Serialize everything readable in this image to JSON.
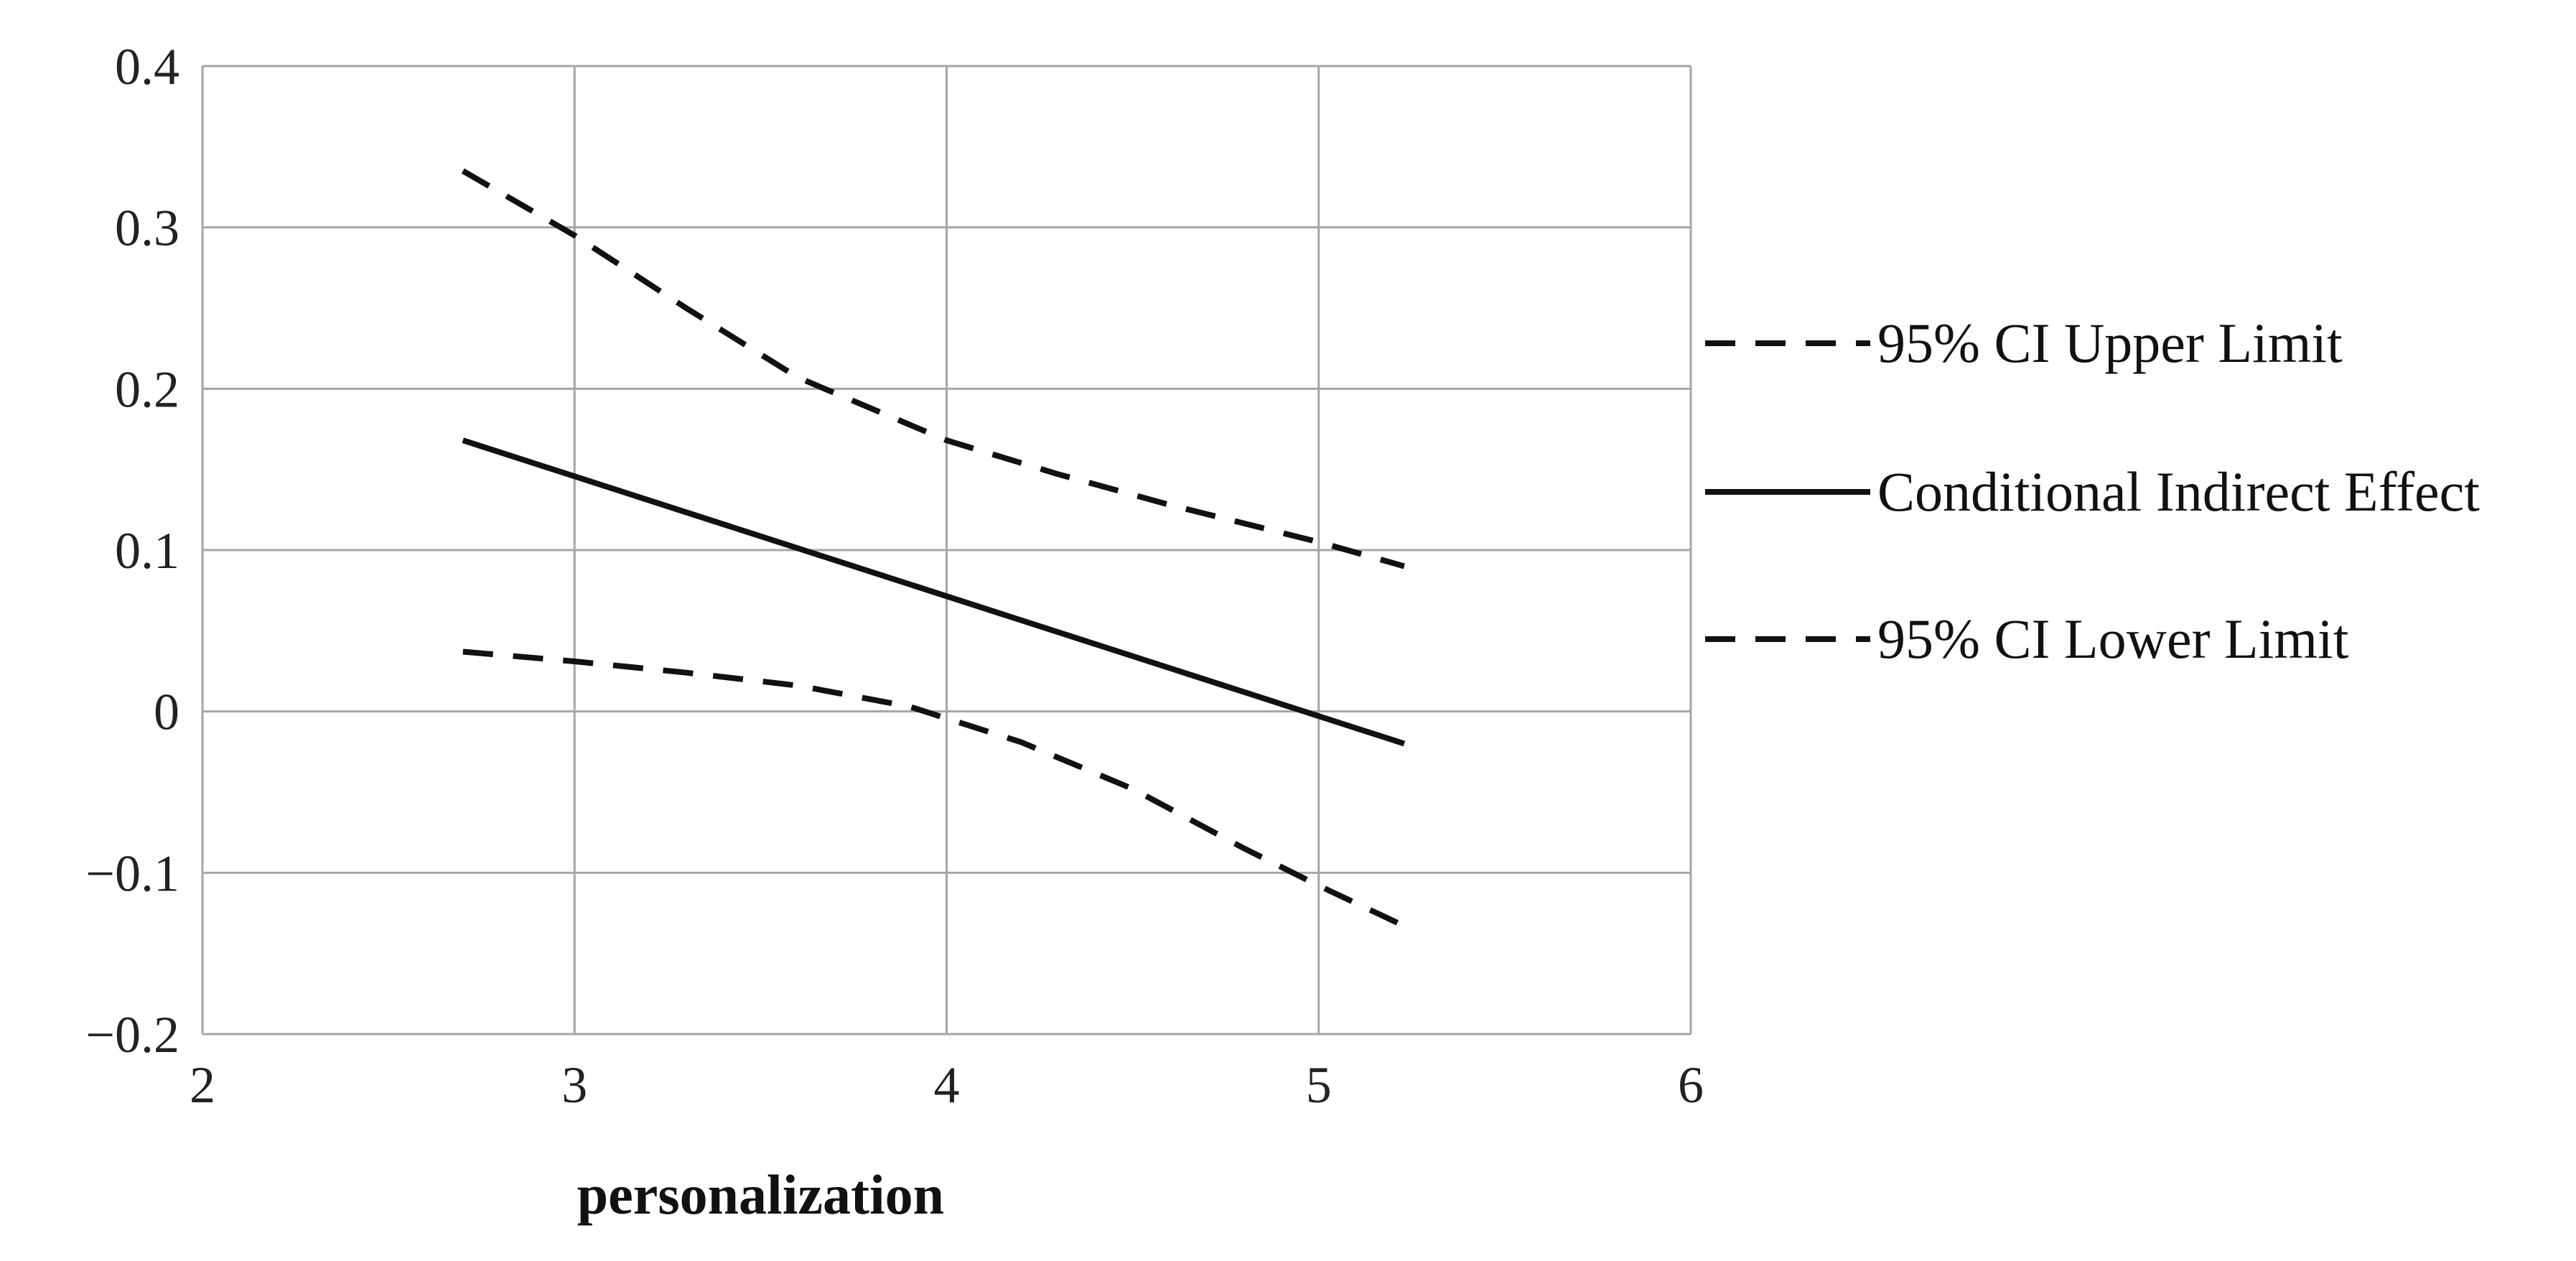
{
  "chart_data": {
    "type": "line",
    "xlabel": "personalization",
    "ylabel": "",
    "xlim": [
      2,
      6
    ],
    "ylim": [
      -0.2,
      0.4
    ],
    "xticks": [
      "2",
      "3",
      "4",
      "5",
      "6"
    ],
    "yticks": [
      "0.4",
      "0.3",
      "0.2",
      "0.1",
      "0",
      "−0.1",
      "−0.2"
    ],
    "xtick_values": [
      2,
      3,
      4,
      5,
      6
    ],
    "ytick_values": [
      0.4,
      0.3,
      0.2,
      0.1,
      0,
      -0.1,
      -0.2
    ],
    "grid": true,
    "legend_position": "right",
    "series": [
      {
        "name": "95% CI Upper Limit",
        "style": "dashed",
        "color": "#111111",
        "x": [
          2.7,
          3.0,
          3.3,
          3.6,
          4.0,
          4.3,
          4.6,
          5.0,
          5.23
        ],
        "y": [
          0.335,
          0.295,
          0.25,
          0.207,
          0.168,
          0.147,
          0.128,
          0.105,
          0.09
        ]
      },
      {
        "name": "Conditional Indirect Effect",
        "style": "solid",
        "color": "#111111",
        "x": [
          2.7,
          5.23
        ],
        "y": [
          0.168,
          -0.02
        ]
      },
      {
        "name": "95% CI Lower Limit",
        "style": "dashed",
        "color": "#111111",
        "x": [
          2.7,
          3.0,
          3.3,
          3.6,
          3.9,
          4.2,
          4.5,
          4.8,
          5.0,
          5.23
        ],
        "y": [
          0.037,
          0.031,
          0.024,
          0.016,
          0.003,
          -0.019,
          -0.048,
          -0.085,
          -0.108,
          -0.133
        ]
      }
    ]
  }
}
